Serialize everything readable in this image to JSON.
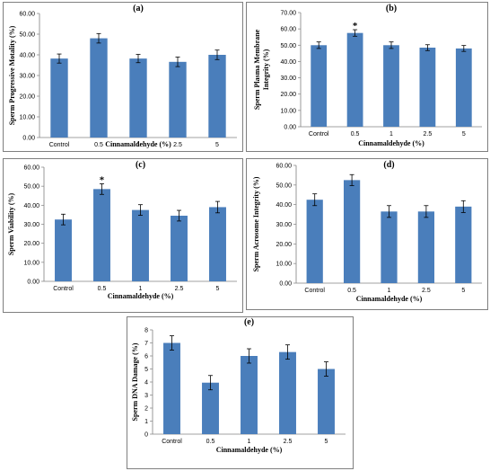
{
  "chart_data": [
    {
      "type": "bar",
      "panel_label": "(a)",
      "xlabel": "Cinnamaldehyde (%)",
      "ylabel": "Sperm Progressive Motality (%)",
      "categories": [
        "Control",
        "0.5",
        "1",
        "2.5",
        "5"
      ],
      "values": [
        38.2,
        48.0,
        38.2,
        36.6,
        40.0
      ],
      "errors": [
        2.2,
        2.3,
        2.0,
        2.3,
        2.3
      ],
      "significance": [
        "",
        "",
        "",
        "",
        ""
      ],
      "ylim": [
        0,
        60
      ],
      "yticks": [
        "0.00",
        "10.00",
        "20.00",
        "30.00",
        "40.00",
        "50.00",
        "60.00"
      ],
      "ytick_values": [
        0,
        10,
        20,
        30,
        40,
        50,
        60
      ],
      "grid": false,
      "bar_color": "#4a7ebb"
    },
    {
      "type": "bar",
      "panel_label": "(b)",
      "xlabel": "Cinnamaldehyde (%)",
      "ylabel": "Sperm Plasma Membrane Integrity (%)",
      "categories": [
        "Control",
        "0.5",
        "1",
        "2.5",
        "5"
      ],
      "values": [
        50.0,
        57.5,
        50.0,
        48.5,
        48.0
      ],
      "errors": [
        2.0,
        2.0,
        2.0,
        1.8,
        1.8
      ],
      "significance": [
        "",
        "*",
        "",
        "",
        ""
      ],
      "ylim": [
        0,
        70
      ],
      "yticks": [
        "0.00",
        "10.00",
        "20.00",
        "30.00",
        "40.00",
        "50.00",
        "60.00",
        "70.00"
      ],
      "ytick_values": [
        0,
        10,
        20,
        30,
        40,
        50,
        60,
        70
      ],
      "grid": false,
      "bar_color": "#4a7ebb"
    },
    {
      "type": "bar",
      "panel_label": "(c)",
      "xlabel": "Cinnamaldehyde (%)",
      "ylabel": "Sperm Viability (%)",
      "categories": [
        "Control",
        "0.5",
        "1",
        "2.5",
        "5"
      ],
      "values": [
        32.5,
        48.5,
        37.5,
        34.5,
        39.0
      ],
      "errors": [
        2.8,
        2.8,
        2.8,
        2.8,
        3.0
      ],
      "significance": [
        "",
        "*",
        "",
        "",
        ""
      ],
      "ylim": [
        0,
        60
      ],
      "yticks": [
        "0.00",
        "10.00",
        "20.00",
        "30.00",
        "40.00",
        "50.00",
        "60.00"
      ],
      "ytick_values": [
        0,
        10,
        20,
        30,
        40,
        50,
        60
      ],
      "grid": false,
      "bar_color": "#4a7ebb"
    },
    {
      "type": "bar",
      "panel_label": "(d)",
      "xlabel": "Cinnamaldehyde (%)",
      "ylabel": "Sperm Acrosome Integrity (%)",
      "categories": [
        "Control",
        "0.5",
        "1",
        "2.5",
        "5"
      ],
      "values": [
        42.5,
        52.5,
        36.5,
        36.5,
        39.0
      ],
      "errors": [
        3.0,
        2.8,
        3.0,
        3.0,
        3.0
      ],
      "significance": [
        "",
        "",
        "",
        "",
        ""
      ],
      "ylim": [
        0,
        60
      ],
      "yticks": [
        "0.00",
        "10.00",
        "20.00",
        "30.00",
        "40.00",
        "50.00",
        "60.00"
      ],
      "ytick_values": [
        0,
        10,
        20,
        30,
        40,
        50,
        60
      ],
      "grid": false,
      "bar_color": "#4a7ebb"
    },
    {
      "type": "bar",
      "panel_label": "(e)",
      "xlabel": "Cinnamaldehyde (%)",
      "ylabel": "Sperm DNA Damage (%)",
      "categories": [
        "Control",
        "0.5",
        "1",
        "2.5",
        "5"
      ],
      "values": [
        7.0,
        3.95,
        6.0,
        6.3,
        5.0
      ],
      "errors": [
        0.55,
        0.55,
        0.55,
        0.55,
        0.55
      ],
      "significance": [
        "",
        "",
        "",
        "",
        ""
      ],
      "ylim": [
        0,
        8
      ],
      "yticks": [
        "0",
        "1",
        "2",
        "3",
        "4",
        "5",
        "6",
        "7",
        "8"
      ],
      "ytick_values": [
        0,
        1,
        2,
        3,
        4,
        5,
        6,
        7,
        8
      ],
      "grid": false,
      "bar_color": "#4a7ebb"
    }
  ]
}
